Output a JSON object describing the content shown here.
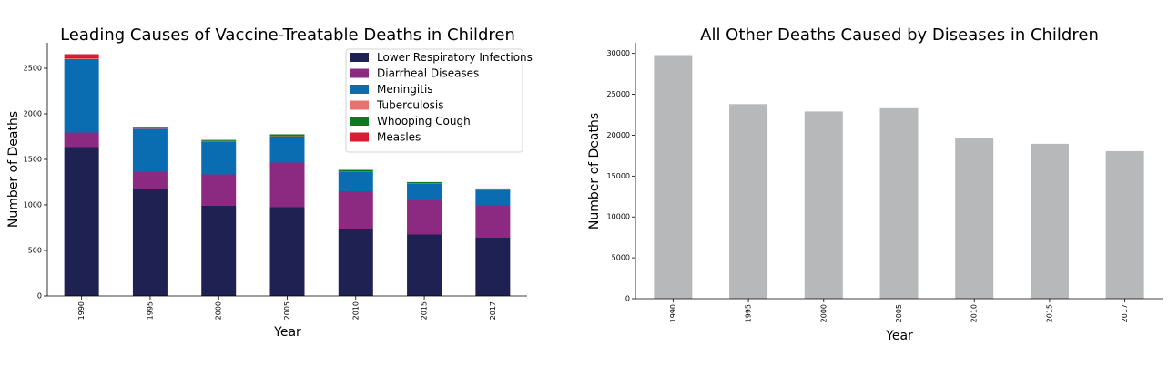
{
  "chart_data": [
    {
      "type": "bar",
      "stacked": true,
      "title": "Leading Causes of Vaccine-Treatable Deaths in Children",
      "xlabel": "Year",
      "ylabel": "Number of Deaths",
      "categories": [
        "1990",
        "1995",
        "2000",
        "2005",
        "2010",
        "2015",
        "2017"
      ],
      "ylim": [
        0,
        2780
      ],
      "yticks": [
        0,
        500,
        1000,
        1500,
        2000,
        2500
      ],
      "legend_position": "top-right",
      "grid": false,
      "series": [
        {
          "name": "Lower Respiratory Infections",
          "color": "#1e2152",
          "values": [
            1635,
            1170,
            990,
            975,
            730,
            675,
            640
          ]
        },
        {
          "name": "Diarrheal Diseases",
          "color": "#8b2a80",
          "values": [
            160,
            195,
            345,
            490,
            420,
            375,
            355
          ]
        },
        {
          "name": "Meningitis",
          "color": "#0a6db1",
          "values": [
            805,
            470,
            360,
            285,
            210,
            185,
            170
          ]
        },
        {
          "name": "Tuberculosis",
          "color": "#e57370",
          "values": [
            10,
            8,
            7,
            5,
            5,
            4,
            4
          ]
        },
        {
          "name": "Whooping Cough",
          "color": "#0b7a22",
          "values": [
            10,
            7,
            12,
            20,
            20,
            12,
            12
          ]
        },
        {
          "name": "Measles",
          "color": "#dc1c34",
          "values": [
            35,
            0,
            0,
            0,
            0,
            0,
            0
          ]
        }
      ]
    },
    {
      "type": "bar",
      "title": "All Other Deaths Caused by Diseases in Children",
      "xlabel": "Year",
      "ylabel": "Number of Deaths",
      "categories": [
        "1990",
        "1995",
        "2000",
        "2005",
        "2010",
        "2015",
        "2017"
      ],
      "ylim": [
        0,
        31300
      ],
      "yticks": [
        0,
        5000,
        10000,
        15000,
        20000,
        25000,
        30000
      ],
      "grid": false,
      "series": [
        {
          "name": "",
          "color": "#b7b8ba",
          "values": [
            29800,
            23800,
            22900,
            23300,
            19700,
            18950,
            18050
          ]
        }
      ]
    }
  ]
}
